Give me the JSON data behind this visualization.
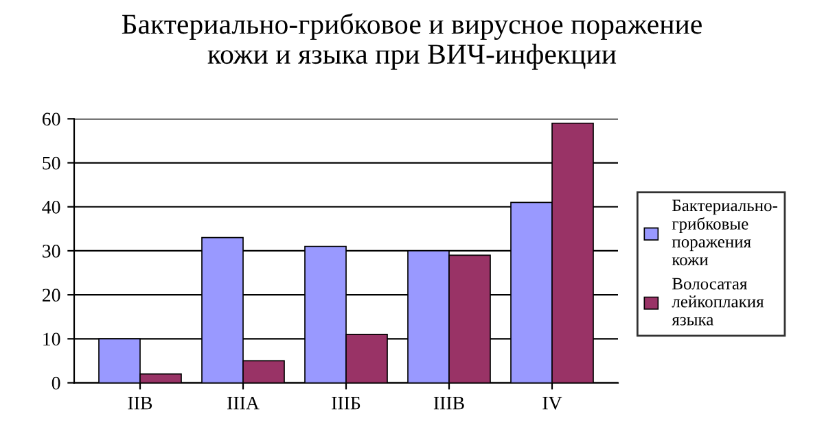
{
  "chart_data": {
    "type": "bar",
    "title": "Бактериально-грибковое и вирусное поражение\nкожи и языка при ВИЧ-инфекции",
    "categories": [
      "IIВ",
      "IIIА",
      "IIIБ",
      "IIIВ",
      "IV"
    ],
    "series": [
      {
        "name": "Бактериально-\nгрибковые\nпоражения\nкожи",
        "color": "#9999ff",
        "values": [
          10,
          33,
          31,
          30,
          41
        ]
      },
      {
        "name": "Волосатая\nлейкоплакия\nязыка",
        "color": "#993366",
        "values": [
          2,
          5,
          11,
          29,
          59
        ]
      }
    ],
    "ylim": [
      0,
      60
    ],
    "yticks": [
      0,
      10,
      20,
      30,
      40,
      50,
      60
    ],
    "grid": "y",
    "legend": "right"
  }
}
